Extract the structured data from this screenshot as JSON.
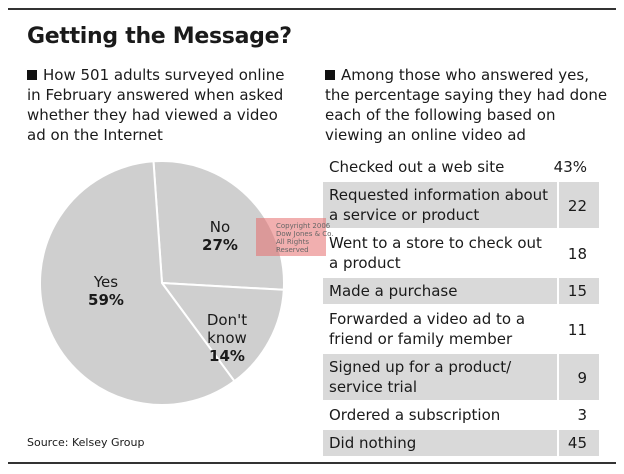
{
  "title": "Getting the Message?",
  "left_caption": "How 501 adults surveyed online in February answered when asked whether they had viewed a video ad on the Internet",
  "right_caption": "Among those who answered yes, the percentage saying they had done each of the following based on viewing an online video ad",
  "source": "Source: Kelsey Group",
  "watermark": "Copyright 2006 Dow Jones & Co. All Rights Reserved",
  "colors": {
    "pie_fill": "#cfcfcf",
    "pie_stroke": "#ffffff",
    "row_shade": "#d9d9d9",
    "rule": "#333333"
  },
  "chart_data": [
    {
      "type": "pie",
      "slices": [
        {
          "name": "No",
          "value": 27,
          "label": "27%"
        },
        {
          "name": "Don't know",
          "value": 14,
          "label": "14%"
        },
        {
          "name": "Yes",
          "value": 59,
          "label": "59%"
        }
      ]
    },
    {
      "type": "table",
      "rows": [
        {
          "label": "Checked out a web site",
          "value": "43%",
          "shaded": false
        },
        {
          "label": "Requested information about a service or product",
          "value": "22",
          "shaded": true
        },
        {
          "label": "Went to a store to check out a product",
          "value": "18",
          "shaded": false
        },
        {
          "label": "Made a purchase",
          "value": "15",
          "shaded": true
        },
        {
          "label": "Forwarded a video ad to a friend or family member",
          "value": "11",
          "shaded": false
        },
        {
          "label": "Signed up for a product/ service trial",
          "value": "9",
          "shaded": true
        },
        {
          "label": "Ordered a subscription",
          "value": "3",
          "shaded": false
        },
        {
          "label": "Did nothing",
          "value": "45",
          "shaded": true
        }
      ]
    }
  ]
}
